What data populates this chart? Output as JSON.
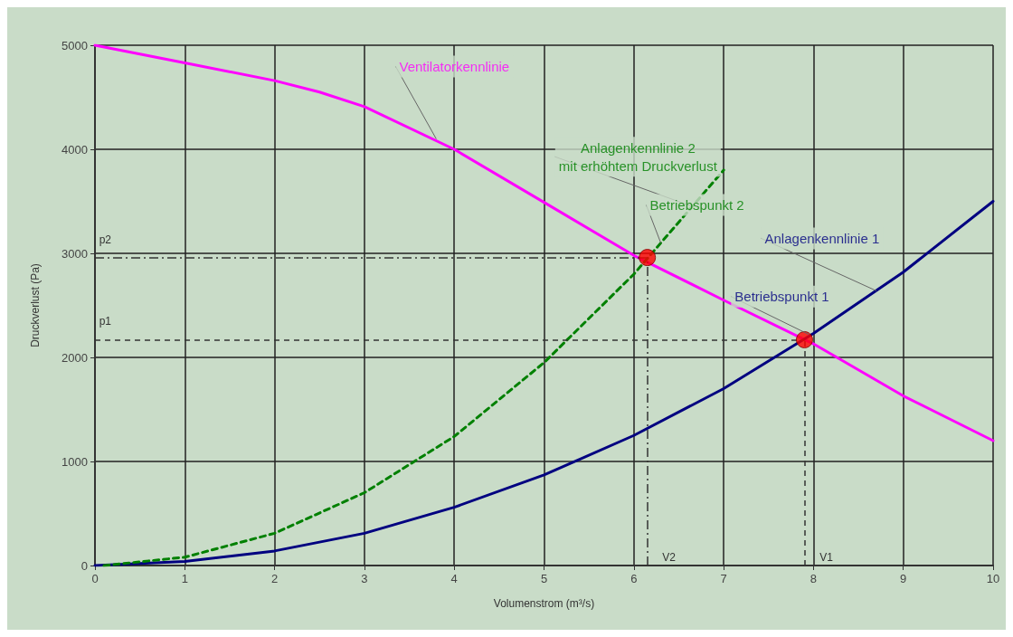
{
  "chart_data": {
    "type": "line",
    "xlabel": "Volumenstrom (m³/s)",
    "ylabel": "Druckverlust (Pa)",
    "xlim": [
      0,
      10
    ],
    "xticks": [
      0,
      1,
      2,
      3,
      4,
      5,
      6,
      7,
      8,
      9,
      10
    ],
    "ylim": [
      0,
      5000
    ],
    "yticks": [
      0,
      1000,
      2000,
      3000,
      4000,
      5000
    ],
    "grid": true,
    "marker": "none",
    "series": [
      {
        "color": "#ff00ff",
        "line_style": "solid",
        "x": [
          0,
          1,
          2,
          2.5,
          3,
          4,
          5,
          6,
          7,
          8,
          9,
          10
        ],
        "values": [
          5000,
          4830,
          4660,
          4550,
          4410,
          4000,
          3490,
          2980,
          2550,
          2130,
          1630,
          1200
        ]
      },
      {
        "color": "#000080",
        "line_style": "solid",
        "x": [
          0,
          1,
          2,
          3,
          4,
          5,
          6,
          7,
          8,
          9,
          10
        ],
        "values": [
          0,
          40,
          140,
          310,
          560,
          870,
          1250,
          1700,
          2230,
          2820,
          3500
        ]
      },
      {
        "color": "#008000",
        "line_style": "dashed",
        "x": [
          0.1,
          1,
          2,
          3,
          4,
          5,
          6,
          7
        ],
        "values": [
          0,
          80,
          310,
          700,
          1240,
          1950,
          2800,
          3800
        ]
      },
      {
        "type": "scatter",
        "color": "#ff0000",
        "marker": "circle",
        "x": [
          6.15,
          7.9
        ],
        "values": [
          2960,
          2170
        ]
      }
    ],
    "ref_lines": [
      {
        "axis": "y",
        "value": 2170,
        "label": "p1",
        "line_style": "dashed",
        "color": "#333333"
      },
      {
        "axis": "x",
        "value": 7.9,
        "label": "V1",
        "line_style": "dashed",
        "color": "#333333"
      },
      {
        "axis": "y",
        "value": 2960,
        "label": "p2",
        "line_style": "dashdot",
        "color": "#333333"
      },
      {
        "axis": "x",
        "value": 6.15,
        "label": "V2",
        "line_style": "dashdot",
        "color": "#333333"
      }
    ],
    "annotations": [
      {
        "text": "Ventilatorkennlinie",
        "x": 3.8,
        "y": 4100
      },
      {
        "text": "Anlagenkennlinie 2\nmit erhöhtem Druckverlust",
        "x": 6.65,
        "y": 3450
      },
      {
        "text": "Betriebspunkt 2",
        "x": 6.3,
        "y": 3100
      },
      {
        "text": "Anlagenkennlinie 1",
        "x": 8.7,
        "y": 2640
      },
      {
        "text": "Betriebspunkt 1",
        "x": 7.95,
        "y": 2220
      }
    ]
  }
}
